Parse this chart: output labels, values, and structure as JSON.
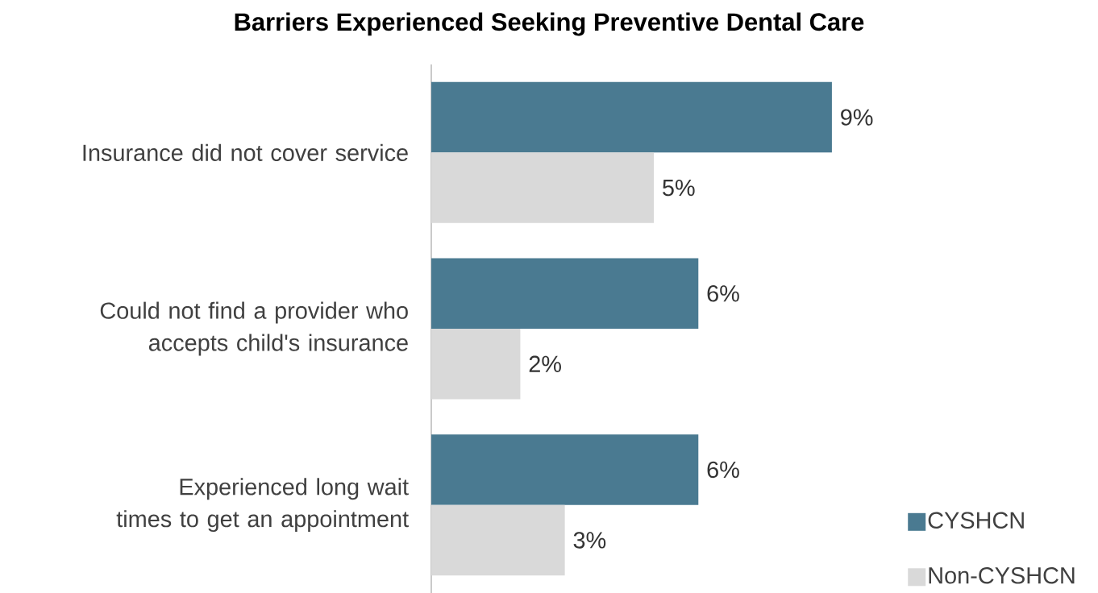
{
  "chart_data": {
    "type": "bar",
    "orientation": "horizontal",
    "title": "Barriers Experienced Seeking Preventive Dental Care",
    "categories": [
      "Insurance did not cover service",
      "Could not find a provider who accepts child's insurance",
      "Experienced long wait times to get an appointment"
    ],
    "series": [
      {
        "name": "CYSHCN",
        "color": "#4a7a91",
        "values": [
          9,
          6,
          6
        ],
        "value_labels": [
          "9%",
          "6%",
          "6%"
        ]
      },
      {
        "name": "Non-CYSHCN",
        "color": "#d9d9d9",
        "values": [
          5,
          2,
          3
        ],
        "value_labels": [
          "5%",
          "2%",
          "3%"
        ]
      }
    ],
    "legend": "bottom right"
  }
}
